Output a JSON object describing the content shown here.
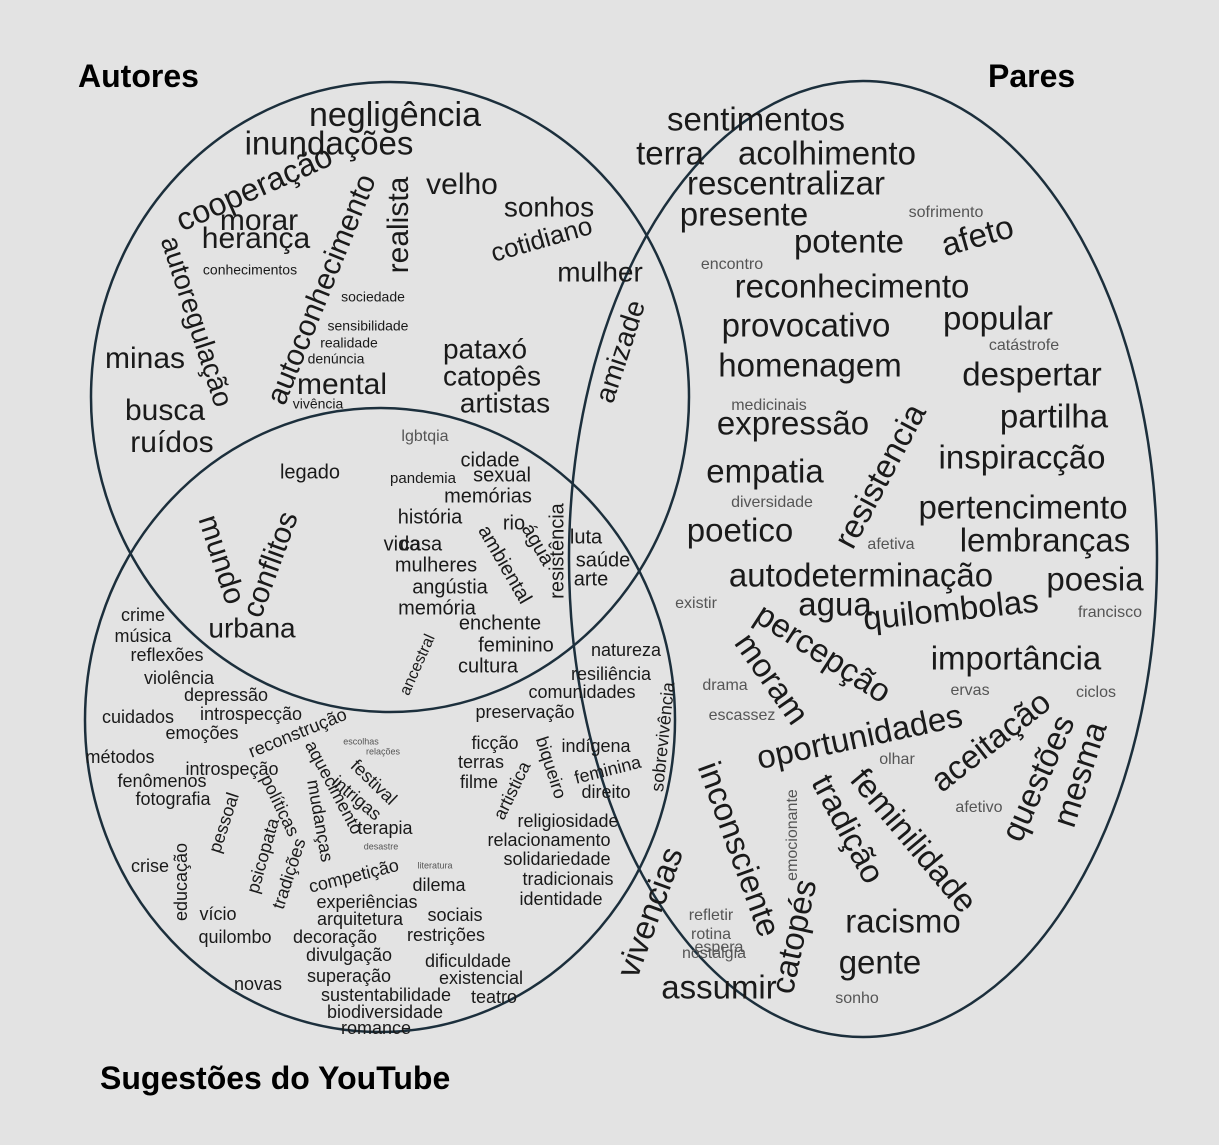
{
  "titles": {
    "autores": "Autores",
    "pares": "Pares",
    "youtube": "Sugestões do YouTube"
  },
  "colors": {
    "background": "#e3e3e3",
    "circle_stroke": "#1c2f3c",
    "word_dark": "#1a1a1a",
    "word_gray": "#555555"
  },
  "words": {
    "autores_only": [
      "negligência",
      "inundações",
      "cooperação",
      "velho",
      "realista",
      "morar",
      "autoconhecimento",
      "herança",
      "autoregulação",
      "conhecimentos",
      "sociedade",
      "sensibilidade",
      "realidade",
      "denúncia",
      "minas",
      "mental",
      "busca",
      "ruídos",
      "vivência"
    ],
    "autores_pares": [
      "sonhos",
      "cotidiano",
      "mulher",
      "amizade",
      "pataxó",
      "catopês",
      "artistas"
    ],
    "pares_only": [
      "sentimentos",
      "terra",
      "acolhimento",
      "rescentralizar",
      "presente",
      "sofrimento",
      "potente",
      "afeto",
      "encontro",
      "reconhecimento",
      "provocativo",
      "popular",
      "catástrofe",
      "homenagem",
      "despertar",
      "medicinais",
      "expressão",
      "partilha",
      "resistencia",
      "inspiracção",
      "empatia",
      "diversidade",
      "pertencimento",
      "poetico",
      "afetiva",
      "lembranças",
      "autodeterminação",
      "poesia",
      "existir",
      "agua",
      "quilombolas",
      "francisco",
      "percepção",
      "importância",
      "moram",
      "drama",
      "ervas",
      "ciclos",
      "escassez",
      "oportunidades",
      "aceitação",
      "olhar",
      "questões",
      "mesma",
      "feminilidade",
      "afetivo",
      "inconsciente",
      "emocionante",
      "tradição",
      "vivencias",
      "refletir",
      "rotina",
      "nostalgia",
      "catopés",
      "racismo",
      "espera",
      "gente",
      "assumir",
      "sonho"
    ],
    "autores_youtube": [
      "legado",
      "mundo",
      "conflitos",
      "urbana"
    ],
    "center": [
      "lgbtqia",
      "cidade",
      "pandemia",
      "sexual",
      "memórias",
      "história",
      "rio",
      "casa",
      "ambiental",
      "água",
      "resistência",
      "luta",
      "vida",
      "saúde",
      "mulheres",
      "arte",
      "angústia",
      "memória",
      "enchente",
      "ancestral",
      "feminino",
      "cultura"
    ],
    "pares_youtube": [
      "natureza",
      "resiliência",
      "comunidades",
      "preservação",
      "sobrevivência",
      "ficção",
      "indígena",
      "biqueiro",
      "terras",
      "artistica",
      "feminina",
      "filme",
      "direito",
      "religiosidade",
      "relacionamento",
      "solidariedade",
      "tradicionais",
      "identidade"
    ],
    "youtube_only": [
      "crime",
      "música",
      "reflexões",
      "violência",
      "depressão",
      "cuidados",
      "introspecção",
      "reconstrução",
      "emoções",
      "escolhas",
      "métodos",
      "festival",
      "relações",
      "aquecimento",
      "introspeção",
      "fenômenos",
      "intrigas",
      "fotografia",
      "políticas",
      "mudanças",
      "terapia",
      "pessoal",
      "desastre",
      "psicopata",
      "crise",
      "tradições",
      "competição",
      "literatura",
      "educação",
      "dilema",
      "experiências",
      "vício",
      "arquitetura",
      "sociais",
      "quilombo",
      "decoração",
      "restrições",
      "divulgação",
      "dificuldade",
      "superação",
      "existencial",
      "novas",
      "sustentabilidade",
      "teatro",
      "biodiversidade",
      "romance"
    ]
  }
}
